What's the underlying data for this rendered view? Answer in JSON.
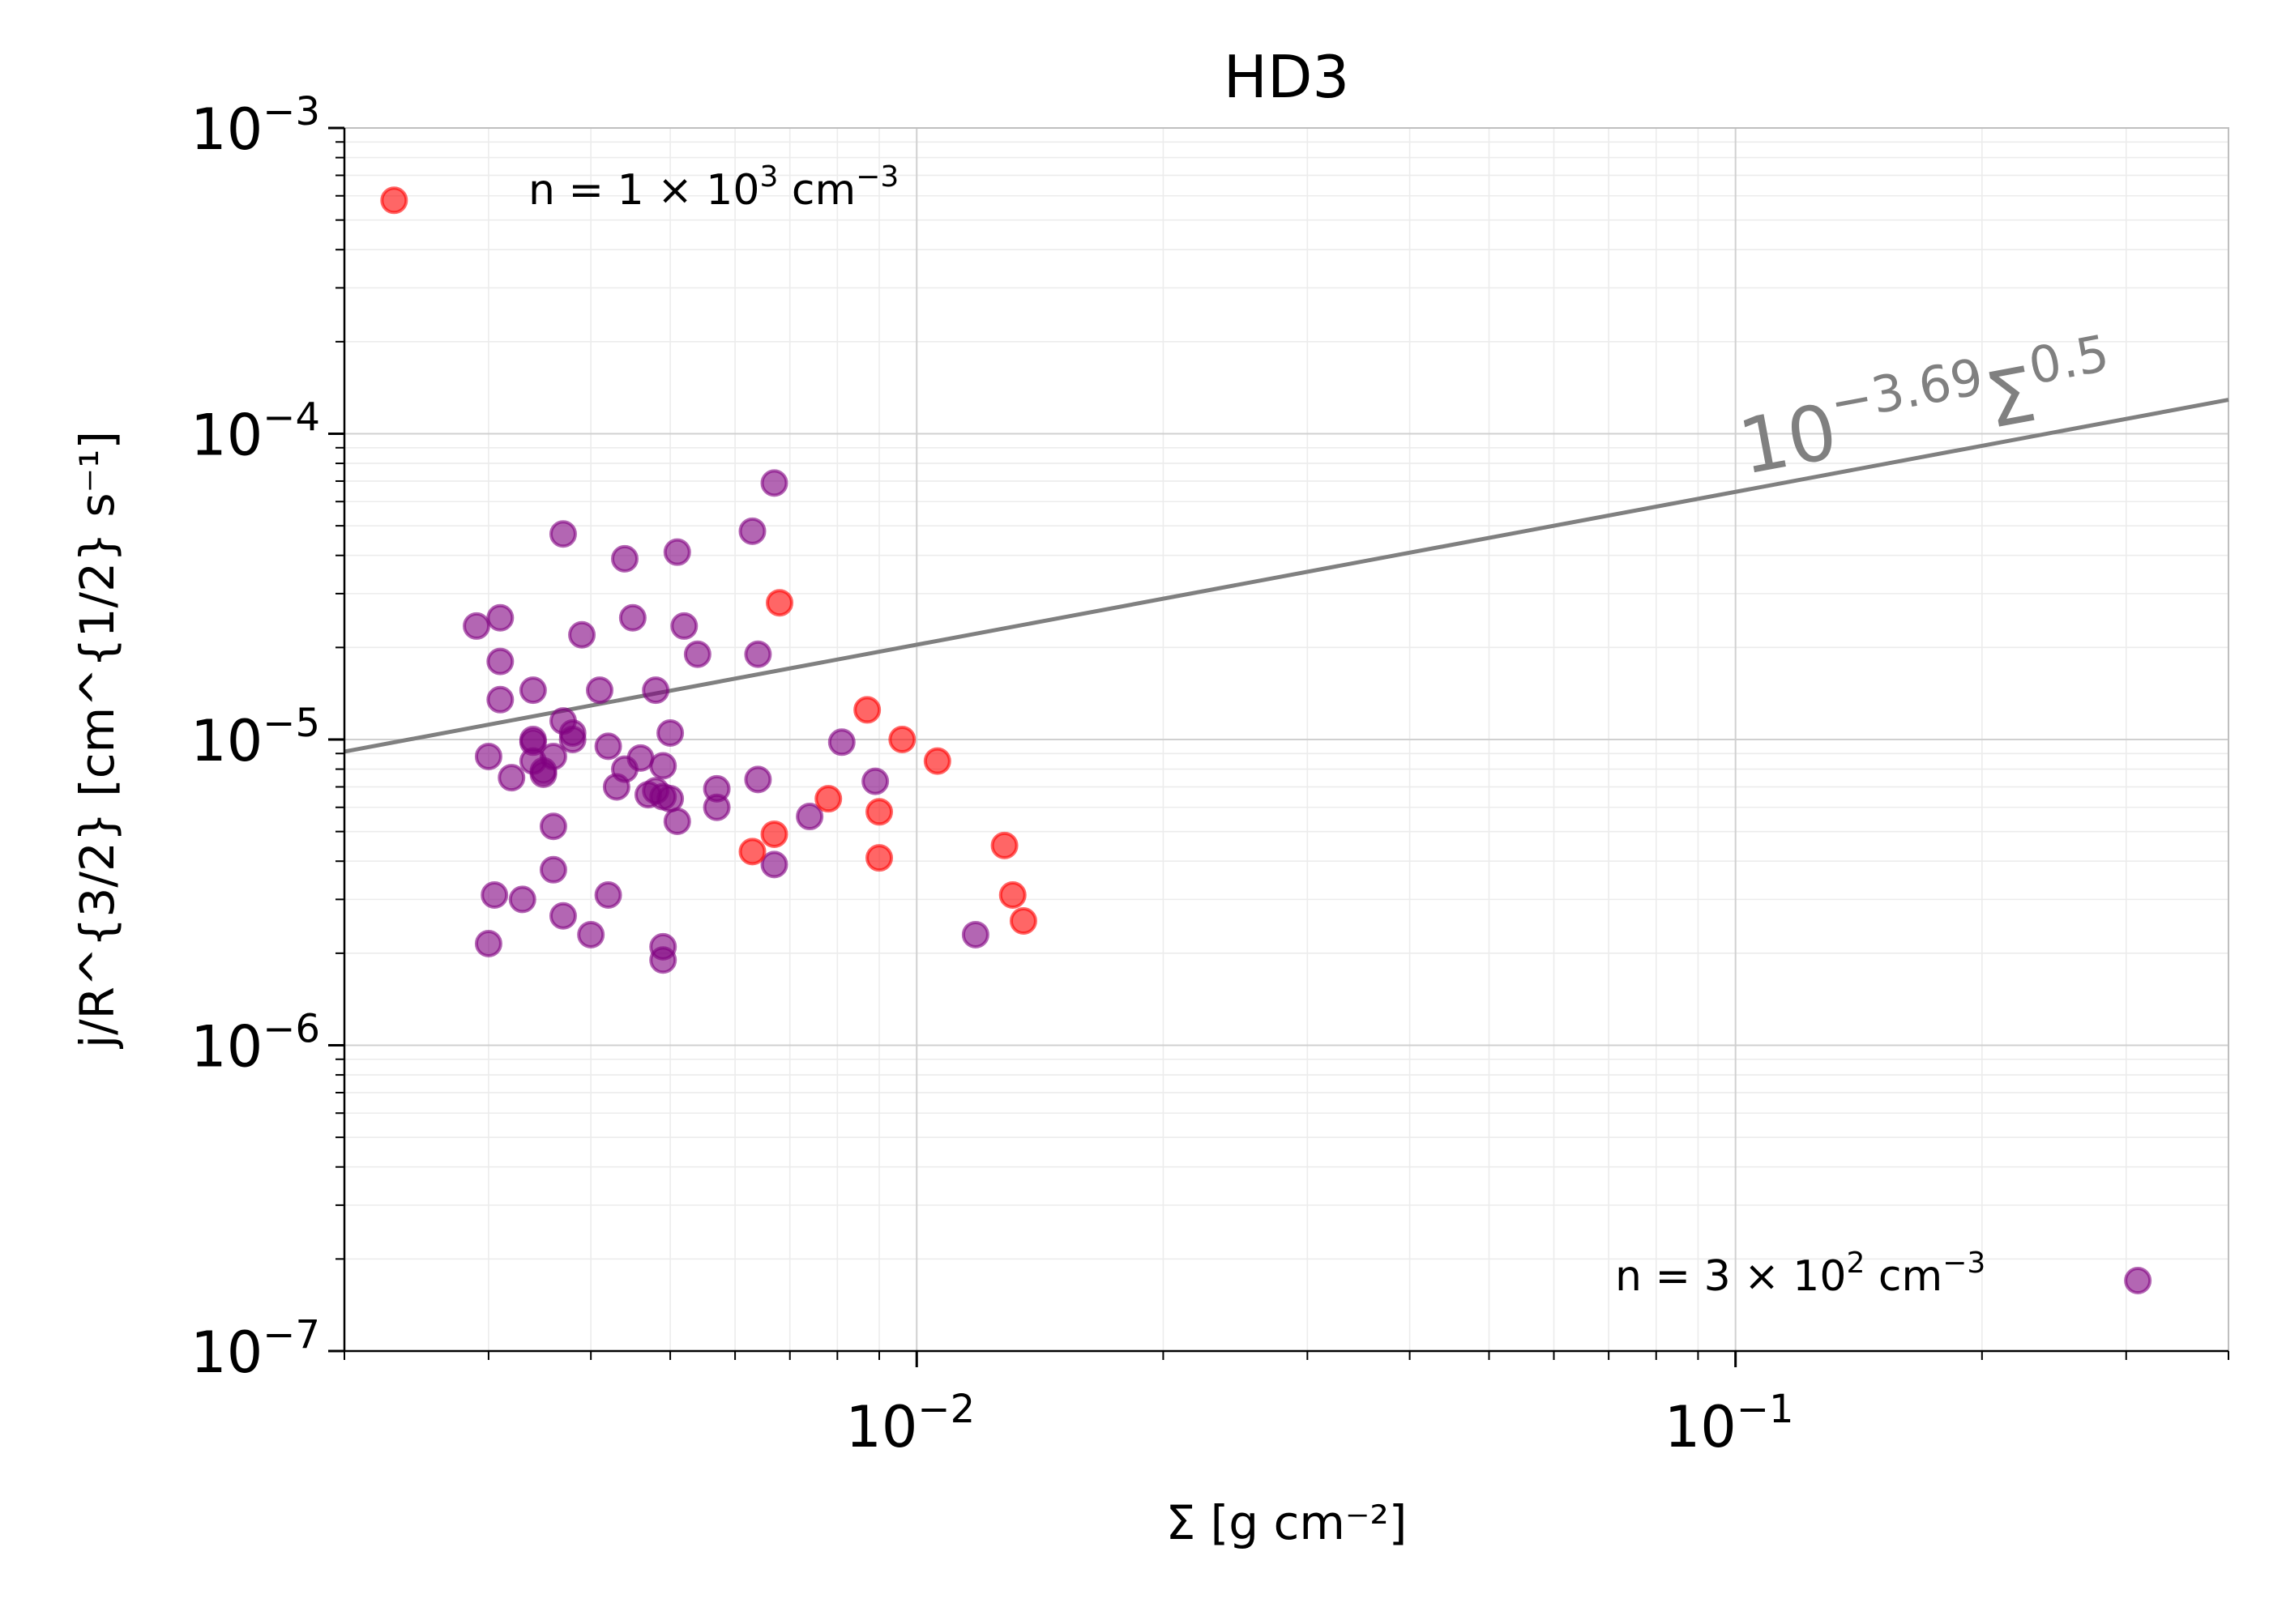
{
  "chart_data": {
    "type": "scatter",
    "title": "HD3",
    "xlabel": "Σ [g cm⁻²]",
    "ylabel": "j/R^{3/2} [cm^{1/2} s⁻¹]",
    "xscale": "log",
    "yscale": "log",
    "xlim": [
      0.002,
      0.4
    ],
    "ylim": [
      1e-07,
      0.001
    ],
    "x_ticks": [
      {
        "value": 0.01,
        "base": "10",
        "exp": "−2"
      },
      {
        "value": 0.1,
        "base": "10",
        "exp": "−1"
      }
    ],
    "y_ticks": [
      {
        "value": 0.001,
        "base": "10",
        "exp": "−3"
      },
      {
        "value": 0.0001,
        "base": "10",
        "exp": "−4"
      },
      {
        "value": 1e-05,
        "base": "10",
        "exp": "−5"
      },
      {
        "value": 1e-06,
        "base": "10",
        "exp": "−6"
      },
      {
        "value": 1e-07,
        "base": "10",
        "exp": "−7"
      }
    ],
    "grid": true,
    "fit_line": {
      "label_base": "10",
      "label_exp": "−3.69",
      "label_sym": "Σ",
      "label_sym_exp": "0.5",
      "log_intercept": -3.69,
      "slope": 0.5,
      "color": "#808080"
    },
    "legend": [
      {
        "series_index": 1,
        "prefix": "n",
        "text": "= 1 × 10",
        "sup": "3",
        "unit": "cm",
        "unit_sup": "−3",
        "placement": "top-left"
      },
      {
        "series_index": 0,
        "prefix": "n",
        "text": "= 3 × 10",
        "sup": "2",
        "unit": "cm",
        "unit_sup": "−3",
        "placement": "bottom-right"
      }
    ],
    "series": [
      {
        "name": "n = 3 × 10² cm⁻³",
        "color": "#800080",
        "points": [
          [
            0.0029,
            2.35e-05
          ],
          [
            0.0031,
            2.5e-05
          ],
          [
            0.0031,
            1.8e-05
          ],
          [
            0.0031,
            1.35e-05
          ],
          [
            0.003,
            8.8e-06
          ],
          [
            0.0032,
            7.5e-06
          ],
          [
            0.0033,
            3e-06
          ],
          [
            0.00305,
            3.1e-06
          ],
          [
            0.003,
            2.15e-06
          ],
          [
            0.0034,
            1.45e-05
          ],
          [
            0.0034,
            1e-05
          ],
          [
            0.0034,
            9.8e-06
          ],
          [
            0.0034,
            8.5e-06
          ],
          [
            0.0035,
            7.9e-06
          ],
          [
            0.0035,
            7.7e-06
          ],
          [
            0.0036,
            5.2e-06
          ],
          [
            0.0036,
            3.75e-06
          ],
          [
            0.0037,
            2.65e-06
          ],
          [
            0.0037,
            4.7e-05
          ],
          [
            0.0036,
            8.8e-06
          ],
          [
            0.0037,
            1.15e-05
          ],
          [
            0.0038,
            1.05e-05
          ],
          [
            0.0038,
            1e-05
          ],
          [
            0.0039,
            2.2e-05
          ],
          [
            0.004,
            2.3e-06
          ],
          [
            0.0041,
            1.45e-05
          ],
          [
            0.0042,
            3.1e-06
          ],
          [
            0.0042,
            9.5e-06
          ],
          [
            0.0043,
            7e-06
          ],
          [
            0.0044,
            3.9e-05
          ],
          [
            0.0044,
            8e-06
          ],
          [
            0.0045,
            2.5e-05
          ],
          [
            0.0046,
            8.7e-06
          ],
          [
            0.0047,
            6.6e-06
          ],
          [
            0.0048,
            6.8e-06
          ],
          [
            0.0048,
            1.45e-05
          ],
          [
            0.0049,
            1.9e-06
          ],
          [
            0.0049,
            2.1e-06
          ],
          [
            0.0049,
            6.5e-06
          ],
          [
            0.0049,
            8.2e-06
          ],
          [
            0.005,
            1.05e-05
          ],
          [
            0.005,
            6.4e-06
          ],
          [
            0.0051,
            4.1e-05
          ],
          [
            0.0051,
            5.4e-06
          ],
          [
            0.0052,
            2.35e-05
          ],
          [
            0.0054,
            1.9e-05
          ],
          [
            0.0057,
            6.9e-06
          ],
          [
            0.0057,
            6e-06
          ],
          [
            0.0063,
            4.8e-05
          ],
          [
            0.0064,
            1.9e-05
          ],
          [
            0.0064,
            7.4e-06
          ],
          [
            0.0067,
            6.9e-05
          ],
          [
            0.0067,
            3.9e-06
          ],
          [
            0.0074,
            5.6e-06
          ],
          [
            0.0081,
            9.8e-06
          ],
          [
            0.0089,
            7.3e-06
          ],
          [
            0.0118,
            2.3e-06
          ],
          [
            0.31,
            1.7e-07
          ]
        ]
      },
      {
        "name": "n = 1 × 10³ cm⁻³",
        "color": "#ff0000",
        "points": [
          [
            0.0023,
            0.00058
          ],
          [
            0.0063,
            4.3e-06
          ],
          [
            0.0067,
            4.9e-06
          ],
          [
            0.0068,
            2.8e-05
          ],
          [
            0.0078,
            6.4e-06
          ],
          [
            0.0087,
            1.25e-05
          ],
          [
            0.009,
            5.8e-06
          ],
          [
            0.009,
            4.1e-06
          ],
          [
            0.0096,
            1e-05
          ],
          [
            0.0106,
            8.5e-06
          ],
          [
            0.0128,
            4.5e-06
          ],
          [
            0.0131,
            3.1e-06
          ],
          [
            0.0135,
            2.55e-06
          ]
        ]
      }
    ]
  }
}
